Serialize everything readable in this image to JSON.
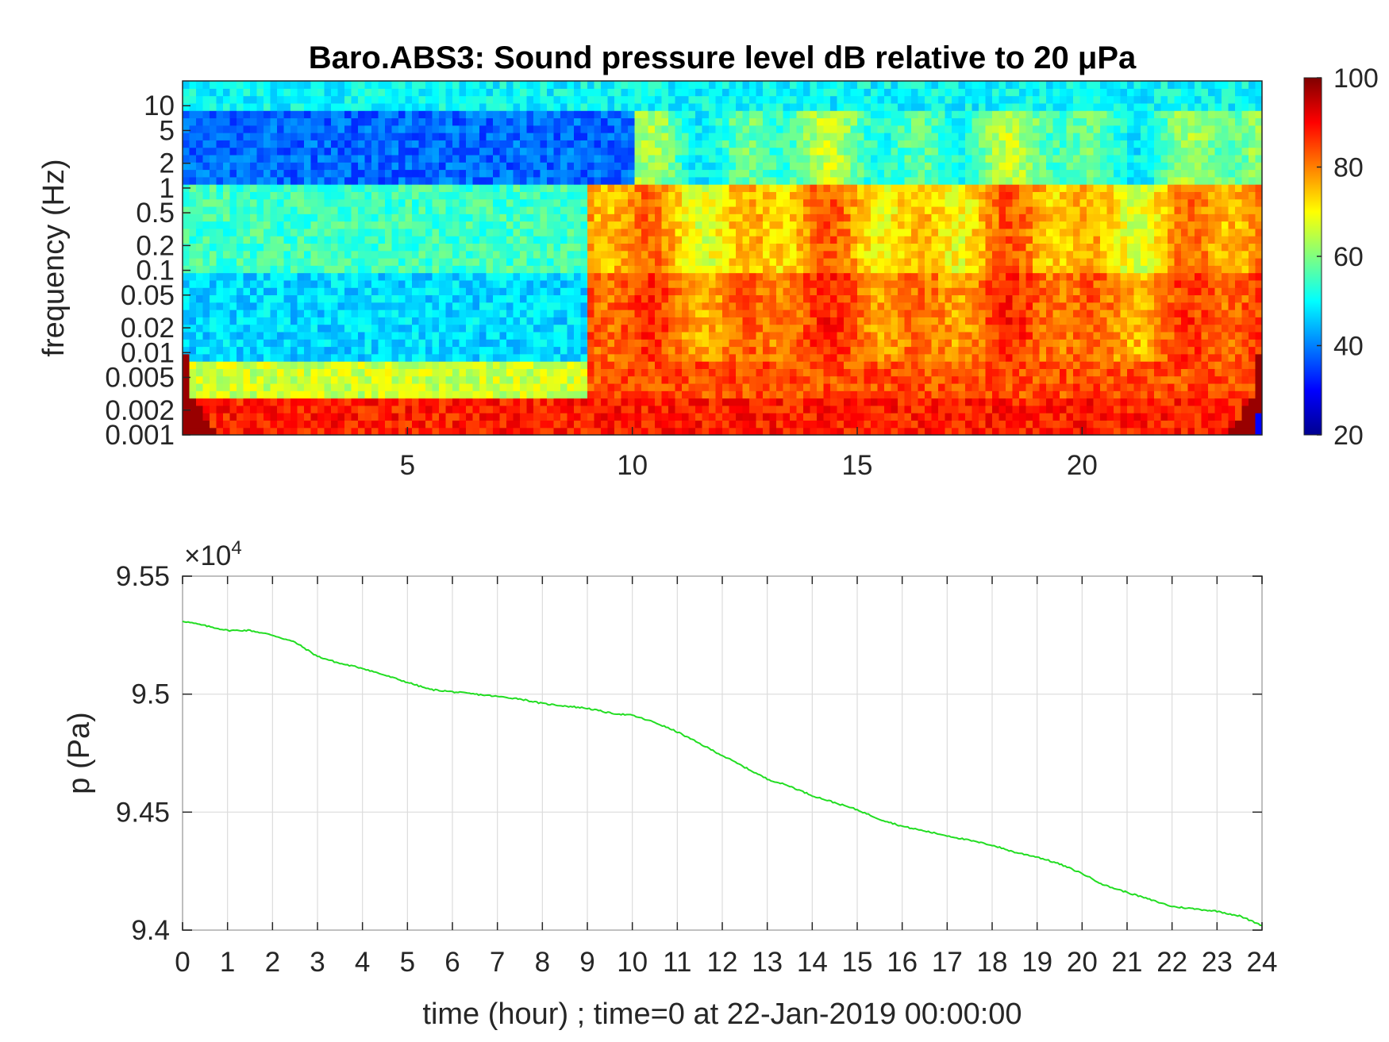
{
  "chart_data": [
    {
      "type": "heatmap",
      "title": "Baro.ABS3: Sound pressure level dB relative to 20 μPa",
      "ylabel": "frequency (Hz)",
      "xlabel": "",
      "x_ticks": [
        5,
        10,
        15,
        20
      ],
      "y_ticks": [
        "10",
        "5",
        "2",
        "1",
        "0.5",
        "0.2",
        "0.1",
        "0.05",
        "0.02",
        "0.01",
        "0.005",
        "0.002",
        "0.001"
      ],
      "y_scale": "log",
      "xlim": [
        0,
        24
      ],
      "ylim": [
        0.001,
        20
      ],
      "colorbar": {
        "label": "",
        "ticks": [
          100,
          80,
          60,
          40,
          20
        ],
        "range": [
          20,
          100
        ],
        "colormap": "jet"
      },
      "description_values": {
        "quiet_period_hours": [
          0,
          9
        ],
        "active_period_hours": [
          9,
          24
        ],
        "quiet_level_db_mid_freq": 48,
        "active_level_db_low_freq": 88,
        "high_freq_band_level_db": 50
      }
    },
    {
      "type": "line",
      "title": "",
      "xlabel": "time (hour) ; time=0 at 22-Jan-2019 00:00:00",
      "ylabel": "p (Pa)",
      "y_exponent_label": "×10",
      "y_exponent_power": "4",
      "x_ticks": [
        "0",
        "1",
        "2",
        "3",
        "4",
        "5",
        "6",
        "7",
        "8",
        "9",
        "10",
        "11",
        "12",
        "13",
        "14",
        "15",
        "16",
        "17",
        "18",
        "19",
        "20",
        "21",
        "22",
        "23",
        "24"
      ],
      "y_ticks": [
        "9.55",
        "9.5",
        "9.45",
        "9.4"
      ],
      "xlim": [
        0,
        24
      ],
      "ylim": [
        9.4,
        9.55
      ],
      "grid": true,
      "color": "#22dd22",
      "series": [
        {
          "x": [
            0,
            0.5,
            1,
            1.5,
            2,
            2.5,
            3,
            3.5,
            4,
            4.5,
            5,
            5.5,
            6,
            6.5,
            7,
            7.5,
            8,
            8.5,
            9,
            9.5,
            10,
            10.5,
            11,
            11.5,
            12,
            12.5,
            13,
            13.5,
            14,
            14.5,
            15,
            15.5,
            16,
            16.5,
            17,
            17.5,
            18,
            18.5,
            19,
            19.5,
            20,
            20.5,
            21,
            21.5,
            22,
            22.5,
            23,
            23.5,
            24
          ],
          "y": [
            9.531,
            9.529,
            9.527,
            9.527,
            9.525,
            9.522,
            9.516,
            9.513,
            9.511,
            9.508,
            9.505,
            9.502,
            9.501,
            9.5,
            9.499,
            9.498,
            9.496,
            9.495,
            9.494,
            9.492,
            9.491,
            9.488,
            9.484,
            9.479,
            9.474,
            9.469,
            9.464,
            9.461,
            9.457,
            9.454,
            9.451,
            9.447,
            9.444,
            9.442,
            9.44,
            9.438,
            9.436,
            9.433,
            9.431,
            9.428,
            9.424,
            9.419,
            9.416,
            9.413,
            9.41,
            9.409,
            9.408,
            9.406,
            9.402
          ]
        }
      ]
    }
  ]
}
